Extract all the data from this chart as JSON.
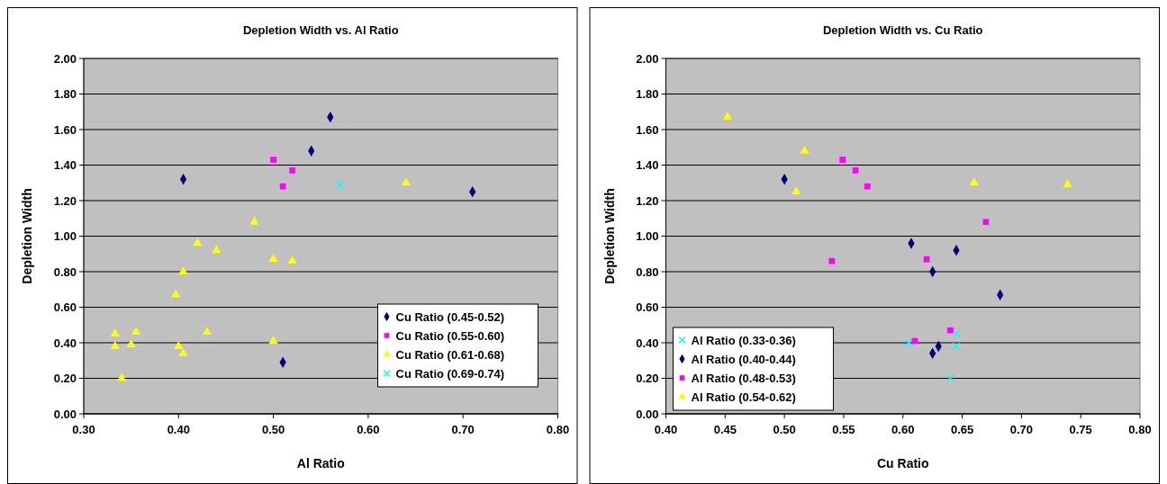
{
  "chart_data": [
    {
      "type": "scatter",
      "title": "Depletion Width vs. Al Ratio",
      "xlabel": "Al Ratio",
      "ylabel": "Depletion Width",
      "xlim": [
        0.3,
        0.8
      ],
      "ylim": [
        0,
        2
      ],
      "grid": "y",
      "legend": "bottom right",
      "xticks": [
        {
          "value": 0.3,
          "label": "0.30"
        },
        {
          "value": 0.4,
          "label": "0.40"
        },
        {
          "value": 0.5,
          "label": "0.50"
        },
        {
          "value": 0.6,
          "label": "0.60"
        },
        {
          "value": 0.7,
          "label": "0.70"
        },
        {
          "value": 0.8,
          "label": "0.80"
        }
      ],
      "yticks": [
        {
          "value": 0,
          "label": "0.00"
        },
        {
          "value": 0.2,
          "label": "0.20"
        },
        {
          "value": 0.4,
          "label": "0.40"
        },
        {
          "value": 0.6,
          "label": "0.60"
        },
        {
          "value": 0.8,
          "label": "0.80"
        },
        {
          "value": 1,
          "label": "1.00"
        },
        {
          "value": 1.2,
          "label": "1.20"
        },
        {
          "value": 1.4,
          "label": "1.40"
        },
        {
          "value": 1.6,
          "label": "1.60"
        },
        {
          "value": 1.8,
          "label": "1.80"
        },
        {
          "value": 2,
          "label": "2.00"
        }
      ],
      "series": [
        {
          "name": "Cu Ratio (0.45-0.52)",
          "color": "#000080",
          "marker": "diamond",
          "x": [
            0.405,
            0.56,
            0.54,
            0.51,
            0.71
          ],
          "values": [
            1.32,
            1.67,
            1.48,
            0.29,
            1.25
          ]
        },
        {
          "name": "Cu Ratio (0.55-0.60)",
          "color": "#ff00ff",
          "marker": "square",
          "x": [
            0.5,
            0.52,
            0.51
          ],
          "values": [
            1.43,
            1.37,
            1.28
          ]
        },
        {
          "name": "Cu Ratio (0.61-0.68)",
          "color": "#ffff00",
          "marker": "triangle",
          "x": [
            0.333,
            0.333,
            0.34,
            0.35,
            0.355,
            0.397,
            0.4,
            0.405,
            0.405,
            0.42,
            0.43,
            0.44,
            0.48,
            0.5,
            0.5,
            0.52,
            0.64
          ],
          "values": [
            0.45,
            0.38,
            0.2,
            0.39,
            0.46,
            0.67,
            0.38,
            0.34,
            0.8,
            0.96,
            0.46,
            0.92,
            1.08,
            0.87,
            0.41,
            0.86,
            1.3
          ]
        },
        {
          "name": "Cu Ratio (0.69-0.74)",
          "color": "#00ffff",
          "marker": "cross",
          "x": [
            0.57
          ],
          "values": [
            1.29
          ]
        }
      ]
    },
    {
      "type": "scatter",
      "title": "Depletion Width vs. Cu Ratio",
      "xlabel": "Cu Ratio",
      "ylabel": "Depletion Width",
      "xlim": [
        0.4,
        0.8
      ],
      "ylim": [
        0,
        2
      ],
      "grid": "y",
      "legend": "bottom left",
      "xticks": [
        {
          "value": 0.4,
          "label": "0.40"
        },
        {
          "value": 0.45,
          "label": "0.45"
        },
        {
          "value": 0.5,
          "label": "0.50"
        },
        {
          "value": 0.55,
          "label": "0.55"
        },
        {
          "value": 0.6,
          "label": "0.60"
        },
        {
          "value": 0.65,
          "label": "0.65"
        },
        {
          "value": 0.7,
          "label": "0.70"
        },
        {
          "value": 0.75,
          "label": "0.75"
        },
        {
          "value": 0.8,
          "label": "0.80"
        }
      ],
      "yticks": [
        {
          "value": 0,
          "label": "0.00"
        },
        {
          "value": 0.2,
          "label": "0.20"
        },
        {
          "value": 0.4,
          "label": "0.40"
        },
        {
          "value": 0.6,
          "label": "0.60"
        },
        {
          "value": 0.8,
          "label": "0.80"
        },
        {
          "value": 1,
          "label": "1.00"
        },
        {
          "value": 1.2,
          "label": "1.20"
        },
        {
          "value": 1.4,
          "label": "1.40"
        },
        {
          "value": 1.6,
          "label": "1.60"
        },
        {
          "value": 1.8,
          "label": "1.80"
        },
        {
          "value": 2,
          "label": "2.00"
        }
      ],
      "series": [
        {
          "name": "Al Ratio (0.33-0.36)",
          "color": "#00ffff",
          "marker": "cross",
          "x": [
            0.605,
            0.645,
            0.645,
            0.64
          ],
          "values": [
            0.4,
            0.45,
            0.38,
            0.2
          ]
        },
        {
          "name": "Al Ratio (0.40-0.44)",
          "color": "#000080",
          "marker": "diamond",
          "x": [
            0.5,
            0.607,
            0.645,
            0.625,
            0.682,
            0.625,
            0.63
          ],
          "values": [
            1.32,
            0.96,
            0.92,
            0.8,
            0.67,
            0.34,
            0.38
          ]
        },
        {
          "name": "Al Ratio (0.48-0.53)",
          "color": "#ff00ff",
          "marker": "square",
          "x": [
            0.549,
            0.56,
            0.57,
            0.54,
            0.62,
            0.67,
            0.64,
            0.61
          ],
          "values": [
            1.43,
            1.37,
            1.28,
            0.86,
            0.87,
            1.08,
            0.47,
            0.41
          ]
        },
        {
          "name": "Al Ratio (0.54-0.62)",
          "color": "#ffff00",
          "marker": "triangle",
          "x": [
            0.452,
            0.517,
            0.51,
            0.66,
            0.739
          ],
          "values": [
            1.67,
            1.48,
            1.25,
            1.3,
            1.29
          ]
        }
      ]
    }
  ]
}
